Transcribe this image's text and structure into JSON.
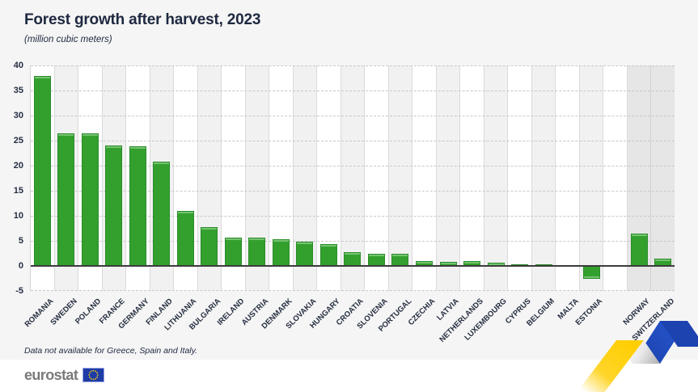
{
  "page": {
    "title": "Forest growth after harvest, 2023",
    "subtitle": "(million cubic meters)",
    "footnote": "Data not available for Greece, Spain and Italy.",
    "footer": {
      "logo_text": "eurostat"
    }
  },
  "chart_data": {
    "type": "bar",
    "title": "Forest growth after harvest, 2023",
    "subtitle": "(million cubic meters)",
    "ylabel": "million cubic meters",
    "ylim": [
      -5,
      40
    ],
    "ytick_interval": 5,
    "grid": "horizontal-dashed",
    "legend": "none",
    "bar_color": "#33a02e",
    "non_eu_column_background": "#e6e6e6",
    "series": [
      {
        "label": "ROMANIA",
        "value": 37.9,
        "group": "eu"
      },
      {
        "label": "SWEDEN",
        "value": 26.5,
        "group": "eu"
      },
      {
        "label": "POLAND",
        "value": 26.4,
        "group": "eu"
      },
      {
        "label": "FRANCE",
        "value": 24.0,
        "group": "eu"
      },
      {
        "label": "GERMANY",
        "value": 23.9,
        "group": "eu"
      },
      {
        "label": "FINLAND",
        "value": 20.8,
        "group": "eu"
      },
      {
        "label": "LITHUANIA",
        "value": 11.0,
        "group": "eu"
      },
      {
        "label": "BULGARIA",
        "value": 7.7,
        "group": "eu"
      },
      {
        "label": "IRELAND",
        "value": 5.7,
        "group": "eu"
      },
      {
        "label": "AUSTRIA",
        "value": 5.6,
        "group": "eu"
      },
      {
        "label": "DENMARK",
        "value": 5.4,
        "group": "eu"
      },
      {
        "label": "SLOVAKIA",
        "value": 4.9,
        "group": "eu"
      },
      {
        "label": "HUNGARY",
        "value": 4.3,
        "group": "eu"
      },
      {
        "label": "CROATIA",
        "value": 2.8,
        "group": "eu"
      },
      {
        "label": "SLOVENIA",
        "value": 2.5,
        "group": "eu"
      },
      {
        "label": "PORTUGAL",
        "value": 2.4,
        "group": "eu"
      },
      {
        "label": "CZECHIA",
        "value": 0.9,
        "group": "eu"
      },
      {
        "label": "LATVIA",
        "value": 0.8,
        "group": "eu"
      },
      {
        "label": "NETHERLANDS",
        "value": 0.9,
        "group": "eu"
      },
      {
        "label": "LUXEMBOURG",
        "value": 0.6,
        "group": "eu"
      },
      {
        "label": "CYPRUS",
        "value": 0.4,
        "group": "eu"
      },
      {
        "label": "BELGIUM",
        "value": 0.3,
        "group": "eu"
      },
      {
        "label": "MALTA",
        "value": 0.0,
        "group": "eu"
      },
      {
        "label": "ESTONIA",
        "value": -2.5,
        "group": "eu"
      },
      {
        "label": "NORWAY",
        "value": 6.4,
        "group": "non-eu"
      },
      {
        "label": "SWITZERLAND",
        "value": 1.4,
        "group": "non-eu"
      }
    ],
    "footnote": "Data not available for Greece, Spain and Italy."
  },
  "colors": {
    "bar_green": "#33a02e",
    "ribbon_yellow": "#ffce00",
    "ribbon_blue": "#2456cd",
    "flag_blue": "#1e3ca8",
    "star_yellow": "#ffcc00",
    "logo_gray": "#7a7a7a"
  }
}
